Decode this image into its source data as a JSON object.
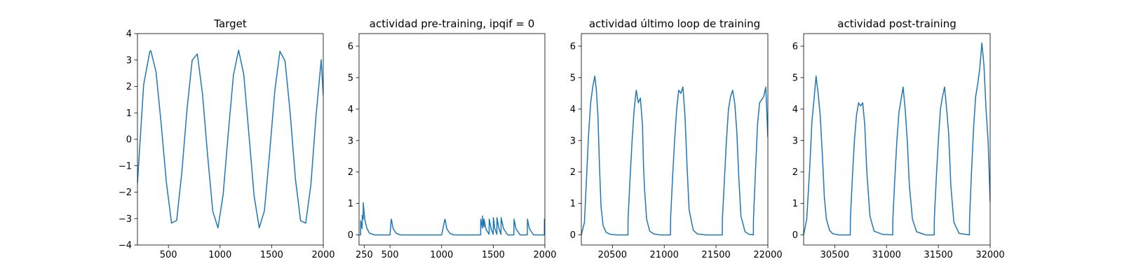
{
  "figure": {
    "background": "#ffffff"
  },
  "chart_data": [
    {
      "type": "line",
      "title": "Target",
      "xlim": [
        200,
        2000
      ],
      "ylim": [
        -4,
        4
      ],
      "xticks": [
        500,
        1000,
        1500,
        2000
      ],
      "xtick_labels": [
        "500",
        "1000",
        "1500",
        "2000"
      ],
      "yticks": [
        -4,
        -3,
        -2,
        -1,
        0,
        1,
        2,
        3,
        4
      ],
      "ytick_labels": [
        "−4",
        "−3",
        "−2",
        "−1",
        "0",
        "1",
        "2",
        "3",
        "4"
      ],
      "grid": false,
      "color": "#1f77b4",
      "series": [
        {
          "x": [
            200,
            260,
            320,
            330,
            380,
            430,
            480,
            530,
            580,
            630,
            680,
            730,
            780,
            830,
            880,
            930,
            980,
            1030,
            1080,
            1130,
            1180,
            1230,
            1280,
            1330,
            1380,
            1430,
            1480,
            1530,
            1580,
            1630,
            1680,
            1730,
            1780,
            1830,
            1880,
            1930,
            1980,
            2000
          ],
          "y": [
            -1.66,
            2.06,
            3.33,
            3.35,
            2.55,
            0.58,
            -1.62,
            -3.17,
            -3.07,
            -1.24,
            1.12,
            2.99,
            3.23,
            1.72,
            -0.62,
            -2.73,
            -3.35,
            -2.1,
            0.24,
            2.44,
            3.37,
            2.45,
            0.18,
            -2.14,
            -3.35,
            -2.7,
            -0.53,
            1.81,
            3.33,
            2.96,
            0.97,
            -1.49,
            -3.08,
            -3.17,
            -1.72,
            0.89,
            3.01,
            1.66
          ]
        }
      ]
    },
    {
      "type": "line",
      "title": "actividad pre-training, ipqif = 0",
      "xlim": [
        200,
        2000
      ],
      "ylim": [
        -0.32,
        6.4
      ],
      "xticks": [
        250,
        500,
        1000,
        1500,
        2000
      ],
      "xtick_labels": [
        "250",
        "500",
        "1000",
        "1500",
        "2000"
      ],
      "yticks": [
        0,
        1,
        2,
        3,
        4,
        5,
        6
      ],
      "ytick_labels": [
        "0",
        "1",
        "2",
        "3",
        "4",
        "5",
        "6"
      ],
      "grid": false,
      "color": "#1f77b4",
      "series": [
        {
          "x": [
            205,
            215,
            216,
            230,
            231,
            240,
            241,
            255,
            275,
            300,
            350,
            500,
            512,
            513,
            530,
            560,
            600,
            1000,
            1032,
            1033,
            1050,
            1080,
            1120,
            1370,
            1378,
            1379,
            1395,
            1396,
            1400,
            1410,
            1411,
            1430,
            1460,
            1461,
            1480,
            1500,
            1501,
            1515,
            1535,
            1536,
            1555,
            1575,
            1576,
            1600,
            1640,
            1700,
            1701,
            1720,
            1760,
            1830,
            1831,
            1850,
            1890,
            1995,
            1996,
            2000
          ],
          "y": [
            0,
            0,
            0.45,
            0.2,
            0.62,
            0.5,
            1.02,
            0.5,
            0.22,
            0.06,
            0,
            0,
            0.5,
            0.5,
            0.2,
            0.05,
            0,
            0,
            0.5,
            0.5,
            0.2,
            0.05,
            0,
            0,
            0,
            0.5,
            0.22,
            0.6,
            0.45,
            0.25,
            0.5,
            0.18,
            0.02,
            0.5,
            0.18,
            0.02,
            0.55,
            0.2,
            0.02,
            0.55,
            0.2,
            0.02,
            0.55,
            0.2,
            0,
            0,
            0.5,
            0.2,
            0,
            0,
            0.5,
            0.2,
            0,
            0,
            0.5,
            0.5
          ]
        }
      ]
    },
    {
      "type": "line",
      "title": "actividad último loop de training",
      "xlim": [
        20200,
        22000
      ],
      "ylim": [
        -0.32,
        6.4
      ],
      "xticks": [
        20500,
        21000,
        21500,
        22000
      ],
      "xtick_labels": [
        "20500",
        "21000",
        "21500",
        "22000"
      ],
      "yticks": [
        0,
        1,
        2,
        3,
        4,
        5,
        6
      ],
      "ytick_labels": [
        "0",
        "1",
        "2",
        "3",
        "4",
        "5",
        "6"
      ],
      "grid": false,
      "color": "#1f77b4",
      "series": [
        {
          "x": [
            20200,
            20230,
            20250,
            20270,
            20290,
            20310,
            20330,
            20345,
            20360,
            20375,
            20390,
            20410,
            20440,
            20480,
            20550,
            20650,
            20651,
            20670,
            20690,
            20710,
            20730,
            20750,
            20770,
            20790,
            20800,
            20810,
            20830,
            20860,
            20900,
            20960,
            21060,
            21061,
            21080,
            21100,
            21120,
            21140,
            21160,
            21180,
            21200,
            21220,
            21240,
            21280,
            21320,
            21400,
            21560,
            21561,
            21580,
            21600,
            21620,
            21640,
            21660,
            21680,
            21700,
            21720,
            21740,
            21780,
            21820,
            21860,
            21861,
            21880,
            21900,
            21920,
            21940,
            21960,
            21980,
            22000
          ],
          "y": [
            0,
            0.4,
            1.8,
            3.2,
            4.2,
            4.7,
            5.05,
            4.6,
            3.8,
            2.2,
            0.9,
            0.3,
            0.08,
            0.02,
            0,
            0,
            0.5,
            1.8,
            3.0,
            4.0,
            4.6,
            4.2,
            4.35,
            3.5,
            2.2,
            1.45,
            0.5,
            0.12,
            0.03,
            0,
            0,
            0.5,
            1.8,
            3.0,
            4.0,
            4.6,
            4.5,
            4.7,
            3.8,
            2.2,
            0.8,
            0.15,
            0.03,
            0,
            0,
            0.5,
            1.7,
            3.0,
            4.0,
            4.4,
            4.6,
            4.2,
            3.3,
            1.8,
            0.6,
            0.1,
            0.02,
            0,
            0.5,
            2.0,
            3.5,
            4.2,
            4.3,
            4.4,
            4.7,
            3.1
          ]
        }
      ]
    },
    {
      "type": "line",
      "title": "actividad post-training",
      "xlim": [
        30200,
        32000
      ],
      "ylim": [
        -0.32,
        6.4
      ],
      "xticks": [
        30500,
        31000,
        31500,
        32000
      ],
      "xtick_labels": [
        "30500",
        "31000",
        "31500",
        "32000"
      ],
      "yticks": [
        0,
        1,
        2,
        3,
        4,
        5,
        6
      ],
      "ytick_labels": [
        "0",
        "1",
        "2",
        "3",
        "4",
        "5",
        "6"
      ],
      "grid": false,
      "color": "#1f77b4",
      "series": [
        {
          "x": [
            30200,
            30230,
            30260,
            30280,
            30300,
            30320,
            30340,
            30360,
            30380,
            30400,
            30420,
            30450,
            30480,
            30540,
            30650,
            30651,
            30670,
            30690,
            30710,
            30730,
            30750,
            30770,
            30790,
            30810,
            30840,
            30880,
            30960,
            31060,
            31061,
            31080,
            31100,
            31120,
            31140,
            31160,
            31180,
            31200,
            31220,
            31250,
            31290,
            31380,
            31460,
            31461,
            31480,
            31500,
            31520,
            31540,
            31560,
            31580,
            31600,
            31620,
            31650,
            31700,
            31800,
            31801,
            31820,
            31840,
            31860,
            31880,
            31900,
            31920,
            31940,
            31960,
            31980,
            32000
          ],
          "y": [
            0,
            0.5,
            2.2,
            3.6,
            4.3,
            5.05,
            4.5,
            3.8,
            2.6,
            1.2,
            0.5,
            0.15,
            0.04,
            0,
            0,
            0.5,
            1.8,
            3.0,
            3.8,
            4.2,
            4.1,
            4.2,
            3.5,
            2.0,
            0.6,
            0.12,
            0.02,
            0,
            0.5,
            1.8,
            3.0,
            3.9,
            4.3,
            4.7,
            4.0,
            3.0,
            1.6,
            0.5,
            0.1,
            0,
            0,
            0.5,
            1.8,
            3.0,
            4.0,
            4.4,
            4.7,
            4.0,
            3.2,
            1.6,
            0.4,
            0.05,
            0,
            0.5,
            2.0,
            3.4,
            4.4,
            4.8,
            5.3,
            6.1,
            5.4,
            4.0,
            3.0,
            1.05
          ]
        }
      ]
    }
  ]
}
